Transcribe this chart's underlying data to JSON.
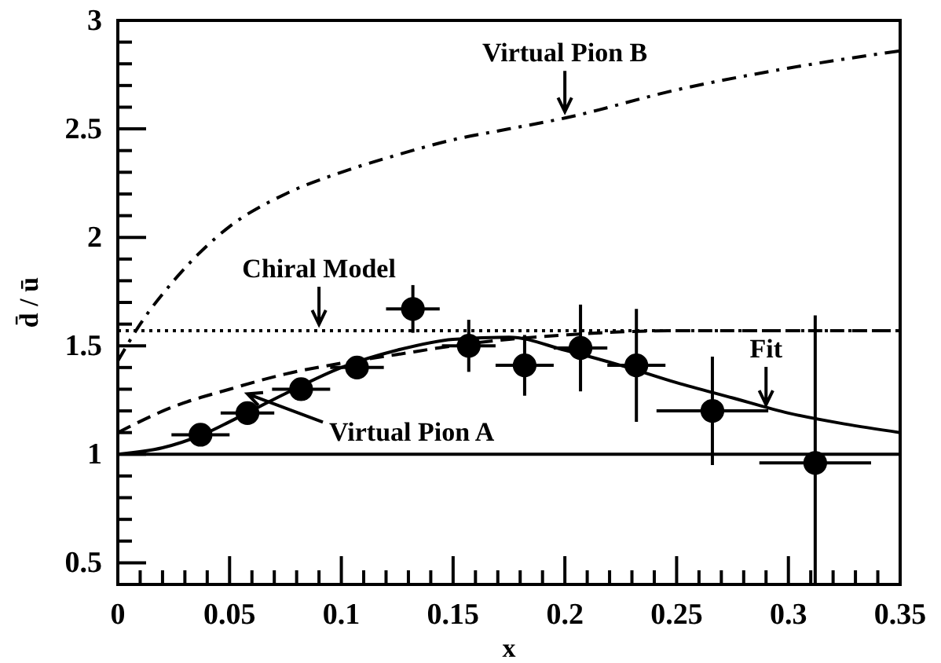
{
  "chart_data": {
    "type": "line",
    "xlabel": "x",
    "ylabel": "d̄ / ū",
    "xlim": [
      0,
      0.35
    ],
    "ylim": [
      0.4,
      3
    ],
    "xticks": [
      0,
      {
        "value": 0.01,
        "label": null
      },
      {
        "value": 0.02,
        "label": null
      },
      {
        "value": 0.03,
        "label": null
      },
      {
        "value": 0.04,
        "label": null
      },
      0.05,
      {
        "value": 0.06,
        "label": null
      },
      {
        "value": 0.07,
        "label": null
      },
      {
        "value": 0.08,
        "label": null
      },
      {
        "value": 0.09,
        "label": null
      },
      0.1,
      {
        "value": 0.11,
        "label": null
      },
      {
        "value": 0.12,
        "label": null
      },
      {
        "value": 0.13,
        "label": null
      },
      {
        "value": 0.14,
        "label": null
      },
      0.15,
      {
        "value": 0.16,
        "label": null
      },
      {
        "value": 0.17,
        "label": null
      },
      {
        "value": 0.18,
        "label": null
      },
      {
        "value": 0.19,
        "label": null
      },
      0.2,
      {
        "value": 0.21,
        "label": null
      },
      {
        "value": 0.22,
        "label": null
      },
      {
        "value": 0.23,
        "label": null
      },
      {
        "value": 0.24,
        "label": null
      },
      0.25,
      {
        "value": 0.26,
        "label": null
      },
      {
        "value": 0.27,
        "label": null
      },
      {
        "value": 0.28,
        "label": null
      },
      {
        "value": 0.29,
        "label": null
      },
      0.3,
      {
        "value": 0.31,
        "label": null
      },
      {
        "value": 0.32,
        "label": null
      },
      {
        "value": 0.33,
        "label": null
      },
      {
        "value": 0.34,
        "label": null
      },
      0.35
    ],
    "yticks": [
      0.5,
      {
        "value": 0.6,
        "label": null
      },
      {
        "value": 0.7,
        "label": null
      },
      {
        "value": 0.8,
        "label": null
      },
      {
        "value": 0.9,
        "label": null
      },
      1,
      {
        "value": 1.1,
        "label": null
      },
      {
        "value": 1.2,
        "label": null
      },
      {
        "value": 1.3,
        "label": null
      },
      {
        "value": 1.4,
        "label": null
      },
      1.5,
      {
        "value": 1.6,
        "label": null
      },
      {
        "value": 1.7,
        "label": null
      },
      {
        "value": 1.8,
        "label": null
      },
      {
        "value": 1.9,
        "label": null
      },
      2,
      {
        "value": 2.1,
        "label": null
      },
      {
        "value": 2.2,
        "label": null
      },
      {
        "value": 2.3,
        "label": null
      },
      {
        "value": 2.4,
        "label": null
      },
      2.5,
      {
        "value": 2.6,
        "label": null
      },
      {
        "value": 2.7,
        "label": null
      },
      {
        "value": 2.8,
        "label": null
      },
      {
        "value": 2.9,
        "label": null
      },
      3
    ],
    "grid": false,
    "ref_lines": [
      {
        "axis": "y",
        "value": 1,
        "color": "#000000",
        "line_style": "solid"
      }
    ],
    "series": [
      {
        "type": "scatter",
        "color": "#000000",
        "marker": "circle",
        "x": [
          0.037,
          0.058,
          0.082,
          0.107,
          0.132,
          0.157,
          0.182,
          0.207,
          0.232,
          0.266,
          0.312
        ],
        "values": [
          1.09,
          1.19,
          1.3,
          1.4,
          1.67,
          1.5,
          1.41,
          1.49,
          1.41,
          1.2,
          0.96
        ],
        "errors": [
          null,
          null,
          null,
          null,
          0.11,
          0.12,
          0.14,
          0.2,
          0.26,
          0.25,
          [
            0.4,
            1.64
          ]
        ],
        "xerrors": [
          0.013,
          0.012,
          0.013,
          0.012,
          0.012,
          0.012,
          0.013,
          0.012,
          0.013,
          0.025,
          0.025
        ]
      },
      {
        "color": "#000000",
        "line_style": "solid",
        "x": [
          0,
          0.02,
          0.04,
          0.05,
          0.075,
          0.1,
          0.125,
          0.15,
          0.175,
          0.2,
          0.225,
          0.25,
          0.275,
          0.3,
          0.325,
          0.35
        ],
        "values": [
          1,
          1.03,
          1.1,
          1.15,
          1.28,
          1.4,
          1.48,
          1.53,
          1.54,
          1.48,
          1.41,
          1.33,
          1.26,
          1.19,
          1.14,
          1.1
        ]
      },
      {
        "color": "#000000",
        "line_style": "dashed",
        "x": [
          0,
          0.025,
          0.05,
          0.075,
          0.1,
          0.125,
          0.15,
          0.175,
          0.2,
          0.25,
          0.3,
          0.35
        ],
        "values": [
          1.1,
          1.22,
          1.3,
          1.37,
          1.42,
          1.46,
          1.5,
          1.53,
          1.55,
          1.57,
          1.57,
          1.57
        ]
      },
      {
        "color": "#000000",
        "line_style": "dotted",
        "x": [
          0,
          0.35
        ],
        "values": [
          1.57,
          1.57
        ]
      },
      {
        "color": "#000000",
        "line_style": "dashdot",
        "x": [
          0,
          0.01,
          0.025,
          0.05,
          0.075,
          0.1,
          0.125,
          0.15,
          0.175,
          0.2,
          0.25,
          0.3,
          0.35
        ],
        "values": [
          1.43,
          1.6,
          1.8,
          2.05,
          2.2,
          2.3,
          2.38,
          2.45,
          2.5,
          2.55,
          2.68,
          2.78,
          2.86
        ]
      }
    ],
    "annotations": [
      {
        "text": "Virtual Pion B",
        "x": 0.2,
        "y": 2.55
      },
      {
        "text": "Chiral Model",
        "x": 0.09,
        "y": 1.57
      },
      {
        "text": "Fit",
        "x": 0.29,
        "y": 1.2
      },
      {
        "text": "Virtual Pion A",
        "x": 0.058,
        "y": 1.3
      }
    ]
  }
}
